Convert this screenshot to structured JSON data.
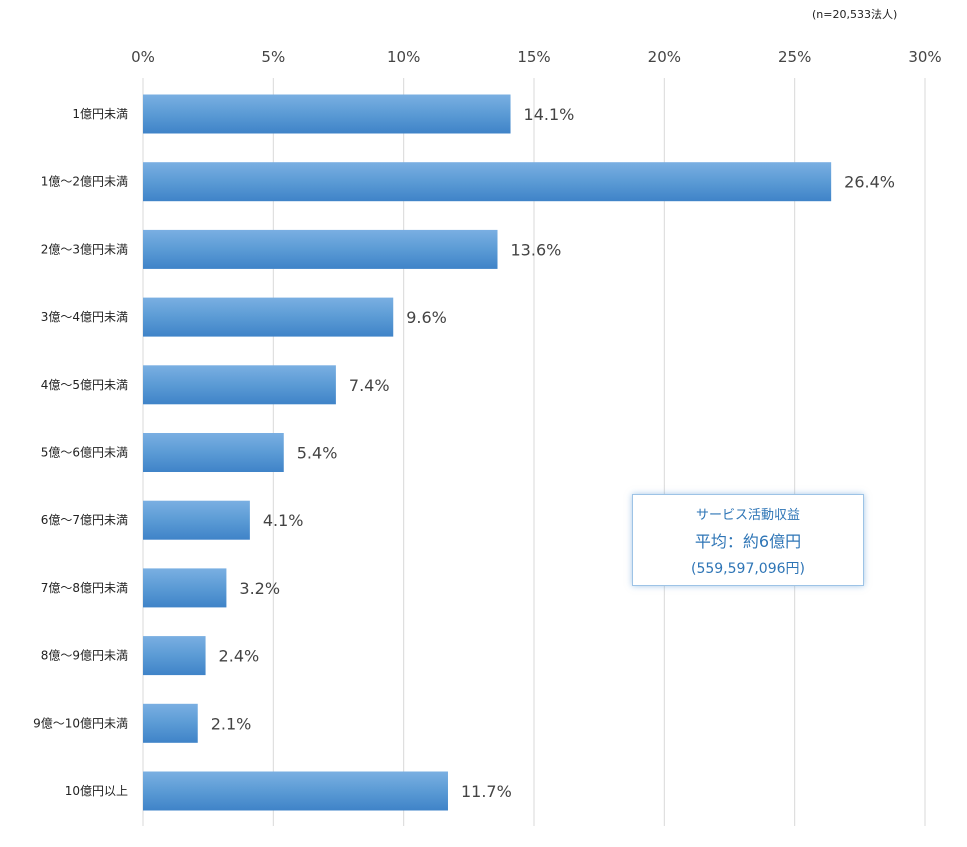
{
  "note": "(n=20,533法人)",
  "callout": {
    "line1": "サービス活動収益",
    "line2": "平均：約6億円",
    "line3": "(559,597,096円)"
  },
  "chart_data": {
    "type": "bar",
    "orientation": "horizontal",
    "categories": [
      "1億円未満",
      "1億〜2億円未満",
      "2億〜3億円未満",
      "3億〜4億円未満",
      "4億〜5億円未満",
      "5億〜6億円未満",
      "6億〜7億円未満",
      "7億〜8億円未満",
      "8億〜9億円未満",
      "9億〜10億円未満",
      "10億円以上"
    ],
    "values": [
      14.1,
      26.4,
      13.6,
      9.6,
      7.4,
      5.4,
      4.1,
      3.2,
      2.4,
      2.1,
      11.7
    ],
    "value_labels": [
      "14.1%",
      "26.4%",
      "13.6%",
      "9.6%",
      "7.4%",
      "5.4%",
      "4.1%",
      "3.2%",
      "2.4%",
      "2.1%",
      "11.7%"
    ],
    "xlim": [
      0,
      30
    ],
    "xticks": [
      0,
      5,
      10,
      15,
      20,
      25,
      30
    ],
    "xtick_labels": [
      "0%",
      "5%",
      "10%",
      "15%",
      "20%",
      "25%",
      "30%"
    ],
    "x_axis_position": "top",
    "grid": true,
    "bar_color": "#5b9bd5"
  }
}
